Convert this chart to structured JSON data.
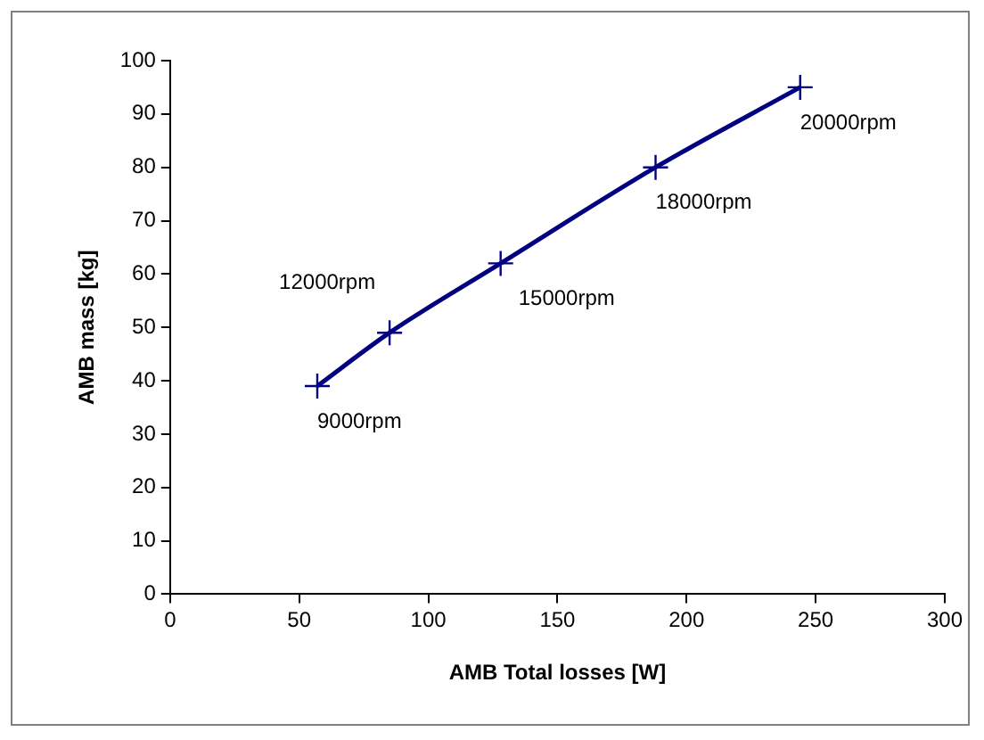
{
  "chart_data": {
    "type": "line",
    "xlabel": "AMB Total losses [W]",
    "ylabel": "AMB mass [kg]",
    "x": [
      57,
      85,
      128,
      188,
      244
    ],
    "series": [
      {
        "color": "#000080",
        "values": [
          39,
          49,
          62,
          80,
          95
        ]
      }
    ],
    "xlim": [
      0,
      300
    ],
    "xticks": [
      0,
      50,
      100,
      150,
      200,
      250,
      300
    ],
    "ylim": [
      0,
      100
    ],
    "yticks": [
      0,
      10,
      20,
      30,
      40,
      50,
      60,
      70,
      80,
      90,
      100
    ],
    "grid": false,
    "legend": false,
    "marker": "cross",
    "line_style": "solid",
    "annotations": [
      {
        "text": "9000rpm",
        "x": 57,
        "y": 39
      },
      {
        "text": "12000rpm",
        "x": 85,
        "y": 49
      },
      {
        "text": "15000rpm",
        "x": 128,
        "y": 62
      },
      {
        "text": "18000rpm",
        "x": 188,
        "y": 80
      },
      {
        "text": "20000rpm",
        "x": 244,
        "y": 95
      }
    ]
  }
}
